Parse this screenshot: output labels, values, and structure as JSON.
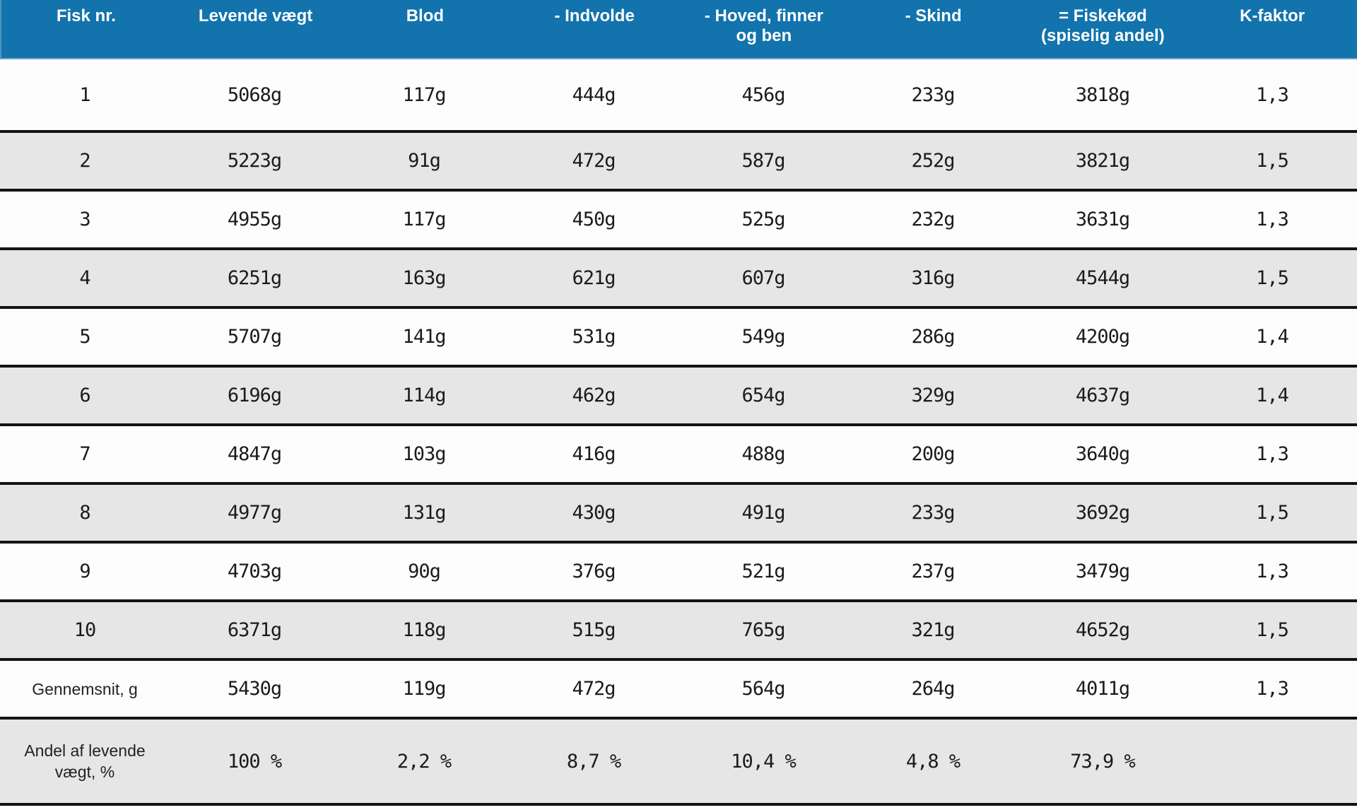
{
  "chart_data": {
    "type": "table",
    "columns": [
      "Fisk nr.",
      "Levende vægt",
      "Blod",
      "- Indvolde",
      "- Hoved, finner\nog ben",
      "- Skind",
      "= Fiskekød\n(spiselig andel)",
      "K-faktor"
    ],
    "rows": [
      [
        "1",
        "5068g",
        "117g",
        "444g",
        "456g",
        "233g",
        "3818g",
        "1,3"
      ],
      [
        "2",
        "5223g",
        "91g",
        "472g",
        "587g",
        "252g",
        "3821g",
        "1,5"
      ],
      [
        "3",
        "4955g",
        "117g",
        "450g",
        "525g",
        "232g",
        "3631g",
        "1,3"
      ],
      [
        "4",
        "6251g",
        "163g",
        "621g",
        "607g",
        "316g",
        "4544g",
        "1,5"
      ],
      [
        "5",
        "5707g",
        "141g",
        "531g",
        "549g",
        "286g",
        "4200g",
        "1,4"
      ],
      [
        "6",
        "6196g",
        "114g",
        "462g",
        "654g",
        "329g",
        "4637g",
        "1,4"
      ],
      [
        "7",
        "4847g",
        "103g",
        "416g",
        "488g",
        "200g",
        "3640g",
        "1,3"
      ],
      [
        "8",
        "4977g",
        "131g",
        "430g",
        "491g",
        "233g",
        "3692g",
        "1,5"
      ],
      [
        "9",
        "4703g",
        "90g",
        "376g",
        "521g",
        "237g",
        "3479g",
        "1,3"
      ],
      [
        "10",
        "6371g",
        "118g",
        "515g",
        "765g",
        "321g",
        "4652g",
        "1,5"
      ],
      [
        "Gennemsnit, g",
        "5430g",
        "119g",
        "472g",
        "564g",
        "264g",
        "4011g",
        "1,3"
      ],
      [
        "Andel af levende\nvægt, %",
        "100 %",
        "2,2 %",
        "8,7 %",
        "10,4 %",
        "4,8 %",
        "73,9 %",
        ""
      ]
    ]
  },
  "colors": {
    "header_bg": "#1273ad",
    "header_text": "#ffffff",
    "row_bg": "#fdfdfd",
    "row_alt_bg": "#e6e6e6",
    "divider": "#141414",
    "text": "#1b1b1b"
  }
}
